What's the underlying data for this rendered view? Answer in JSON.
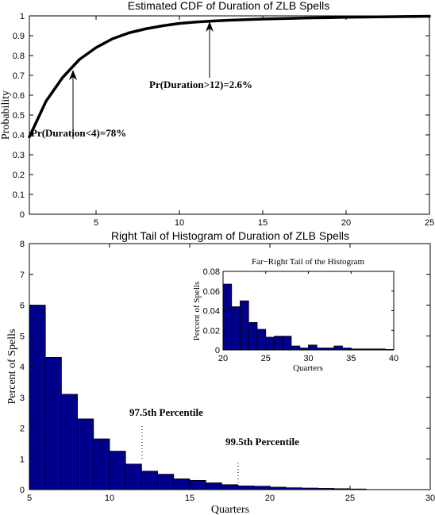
{
  "chart_data": [
    {
      "type": "line",
      "title": "Estimated CDF of Duration of ZLB Spells",
      "xlabel": "",
      "ylabel": "Probability",
      "xlim": [
        1,
        25
      ],
      "ylim": [
        0,
        1
      ],
      "xticks": [
        5,
        10,
        15,
        20,
        25
      ],
      "yticks": [
        0,
        0.1,
        0.2,
        0.3,
        0.4,
        0.5,
        0.6,
        0.7,
        0.8,
        0.9,
        1
      ],
      "ytick_labels": [
        "0",
        "0.1",
        "0.2",
        "0.3",
        "0.4",
        "0.5",
        "0.6",
        "0.7",
        "0.8",
        "0.9",
        "1"
      ],
      "series": [
        {
          "x": [
            1,
            2,
            3,
            4,
            5,
            6,
            7,
            8,
            9,
            10,
            11,
            12,
            13,
            14,
            15,
            16,
            17,
            18,
            19,
            20,
            21,
            22,
            23,
            24,
            25
          ],
          "y": [
            0.39,
            0.57,
            0.69,
            0.78,
            0.84,
            0.885,
            0.915,
            0.935,
            0.95,
            0.962,
            0.969,
            0.974,
            0.978,
            0.981,
            0.984,
            0.986,
            0.988,
            0.99,
            0.991,
            0.993,
            0.994,
            0.995,
            0.996,
            0.997,
            0.998
          ]
        }
      ],
      "annotations": [
        {
          "text": "Pr(Duration<4)=78%",
          "x": 3.5,
          "y": 0.78
        },
        {
          "text": "Pr(Duration>12)=2.6%",
          "x": 12,
          "y": 0.974
        }
      ]
    },
    {
      "type": "bar",
      "title": "Right Tail of Histogram of Duration of ZLB Spells",
      "xlabel": "Quarters",
      "ylabel": "Percent of Spells",
      "xlim": [
        5,
        30
      ],
      "ylim": [
        0,
        8
      ],
      "xticks": [
        5,
        10,
        15,
        20,
        25,
        30
      ],
      "yticks": [
        0,
        1,
        2,
        3,
        4,
        5,
        6,
        7,
        8
      ],
      "x": [
        5,
        6,
        7,
        8,
        9,
        10,
        11,
        12,
        13,
        14,
        15,
        16,
        17,
        18,
        19,
        20,
        21,
        22,
        23,
        24,
        25
      ],
      "values": [
        6.0,
        4.3,
        3.1,
        2.3,
        1.65,
        1.25,
        0.83,
        0.6,
        0.5,
        0.35,
        0.3,
        0.22,
        0.16,
        0.12,
        0.11,
        0.08,
        0.06,
        0.05,
        0.04,
        0.03,
        0.02
      ],
      "bar_color": "#00008B",
      "annotations": [
        {
          "text": "97.5th Percentile",
          "x": 12
        },
        {
          "text": "99.5th Percentile",
          "x": 18
        }
      ]
    },
    {
      "type": "bar",
      "title": "Far−Right Tail of the Histogram",
      "xlabel": "Quarters",
      "ylabel": "Percent of Spells",
      "xlim": [
        20,
        40
      ],
      "ylim": [
        0,
        0.08
      ],
      "xticks": [
        20,
        25,
        30,
        35,
        40
      ],
      "yticks": [
        0,
        0.02,
        0.04,
        0.06,
        0.08
      ],
      "ytick_labels": [
        "0",
        "0.02",
        "0.04",
        "0.06",
        "0.08"
      ],
      "x": [
        20,
        21,
        22,
        23,
        24,
        25,
        26,
        27,
        28,
        29,
        30,
        31,
        32,
        33,
        34,
        35,
        36,
        37,
        38,
        39
      ],
      "values": [
        0.067,
        0.044,
        0.05,
        0.028,
        0.021,
        0.013,
        0.014,
        0.014,
        0.004,
        0.002,
        0.005,
        0.002,
        0.002,
        0.004,
        0.002,
        0.001,
        0.001,
        0.001,
        0.001,
        0.0005
      ],
      "bar_color": "#00008B"
    }
  ]
}
